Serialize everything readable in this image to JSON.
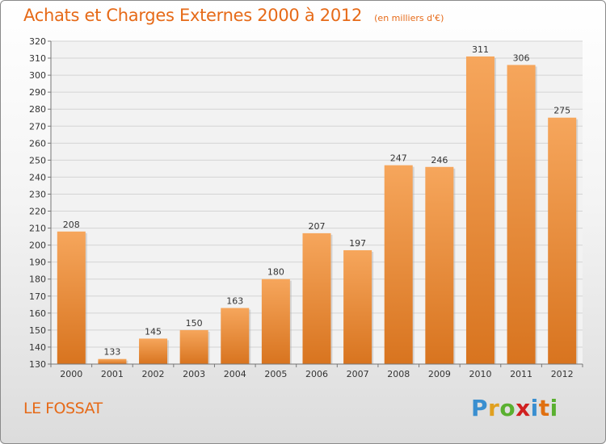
{
  "title": "Achats et Charges Externes 2000 à 2012",
  "subtitle": "(en milliers d'€)",
  "location": "LE FOSSAT",
  "brand": {
    "letters": [
      "P",
      "r",
      "o",
      "x",
      "i",
      "t",
      "i"
    ],
    "colors": [
      "#3a8fd0",
      "#e0a020",
      "#5ab030",
      "#d02020",
      "#3a8fd0",
      "#e07010",
      "#5ab030"
    ]
  },
  "colors": {
    "bar_top": "#f6a65c",
    "bar_bottom": "#d8741f",
    "title": "#e66a18",
    "grid": "#d4d4d4"
  },
  "chart_data": {
    "type": "bar",
    "categories": [
      "2000",
      "2001",
      "2002",
      "2003",
      "2004",
      "2005",
      "2006",
      "2007",
      "2008",
      "2009",
      "2010",
      "2011",
      "2012"
    ],
    "values": [
      208,
      133,
      145,
      150,
      163,
      180,
      207,
      197,
      247,
      246,
      311,
      306,
      275
    ],
    "data_labels": [
      "208",
      "133",
      "145",
      "150",
      "163",
      "180",
      "207",
      "197",
      "247",
      "246",
      "311",
      "306",
      "275"
    ],
    "yticks": [
      "130",
      "140",
      "150",
      "160",
      "170",
      "180",
      "190",
      "200",
      "210",
      "220",
      "230",
      "240",
      "250",
      "260",
      "270",
      "280",
      "290",
      "300",
      "310",
      "320"
    ],
    "ylim": [
      130,
      320
    ],
    "grid": true,
    "title": "Achats et Charges Externes 2000 à 2012",
    "xlabel": "",
    "ylabel": ""
  }
}
